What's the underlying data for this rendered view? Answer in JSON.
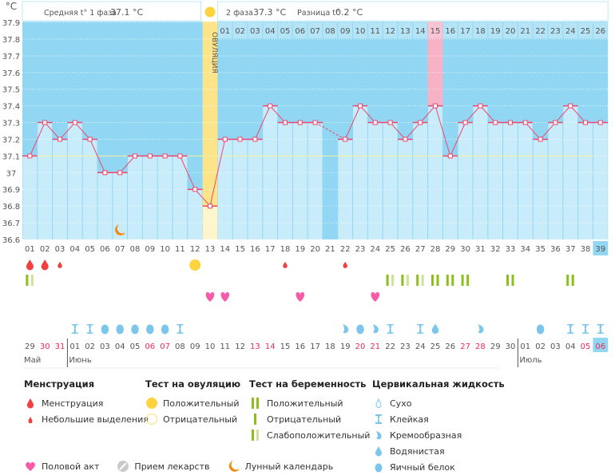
{
  "header": {
    "phase1_label": "Средняя t° 1 фаза",
    "phase1_value": "37.1 °C",
    "phase2_label": "2 фаза",
    "phase2_value": "37.3 °C",
    "diff_label": "Разница t°",
    "diff_value": "0.2 °C",
    "ovulation_label": "ОВУЛЯЦИЯ"
  },
  "chart_data": {
    "type": "line",
    "ylabel": "°C",
    "ylim": [
      36.6,
      37.9
    ],
    "yticks": [
      "37.9",
      "37.8",
      "37.7",
      "37.6",
      "37.5",
      "37.4",
      "37.3",
      "37.2",
      "37.1",
      "37",
      "36.9",
      "36.8",
      "36.7",
      "36.6"
    ],
    "coverline": 37.1,
    "ovulation_day": 13,
    "highlight_day": 28,
    "today_day": 39,
    "cycle_days": [
      "01",
      "02",
      "03",
      "04",
      "05",
      "06",
      "07",
      "08",
      "09",
      "10",
      "11",
      "12",
      "13",
      "14",
      "15",
      "16",
      "17",
      "18",
      "19",
      "20",
      "21",
      "22",
      "23",
      "24",
      "25",
      "26",
      "27",
      "28",
      "29",
      "30",
      "31",
      "32",
      "33",
      "34",
      "35",
      "36",
      "37",
      "38",
      "39"
    ],
    "phase2_days": [
      "01",
      "02",
      "03",
      "04",
      "05",
      "06",
      "07",
      "08",
      "09",
      "10",
      "11",
      "12",
      "13",
      "14",
      "15",
      "16",
      "17",
      "18",
      "19",
      "20",
      "21",
      "22",
      "23",
      "24",
      "25",
      "26"
    ],
    "temperatures": [
      37.1,
      37.3,
      37.2,
      37.3,
      37.2,
      37.0,
      37.0,
      37.1,
      37.1,
      37.1,
      37.1,
      36.9,
      36.8,
      37.2,
      37.2,
      37.2,
      37.4,
      37.3,
      37.3,
      37.3,
      null,
      37.2,
      37.4,
      37.3,
      37.3,
      37.2,
      37.3,
      37.4,
      37.1,
      37.3,
      37.4,
      37.3,
      37.3,
      37.3,
      37.2,
      37.3,
      37.4,
      37.3,
      37.3
    ],
    "dates": [
      "29",
      "30",
      "31",
      "01",
      "02",
      "03",
      "04",
      "05",
      "06",
      "07",
      "08",
      "09",
      "10",
      "11",
      "12",
      "13",
      "14",
      "15",
      "16",
      "17",
      "18",
      "19",
      "20",
      "21",
      "22",
      "23",
      "24",
      "25",
      "26",
      "27",
      "28",
      "29",
      "30",
      "01",
      "02",
      "03",
      "04",
      "05",
      "06"
    ],
    "weekend_dates_idx": [
      1,
      2,
      8,
      9,
      15,
      16,
      22,
      23,
      29,
      30,
      37,
      38
    ],
    "months": [
      {
        "label": "Май",
        "start_day": 1
      },
      {
        "label": "Июнь",
        "start_day": 4
      },
      {
        "label": "Июль",
        "start_day": 34
      }
    ],
    "moon_day": 7,
    "menstruation": [
      {
        "day": 1,
        "type": "heavy"
      },
      {
        "day": 2,
        "type": "heavy"
      },
      {
        "day": 3,
        "type": "light"
      },
      {
        "day": 18,
        "type": "light"
      },
      {
        "day": 22,
        "type": "light"
      }
    ],
    "ovulation_tests": [
      {
        "day": 12,
        "type": "positive"
      }
    ],
    "pregnancy_tests": [
      {
        "day": 1,
        "type": "weak"
      },
      {
        "day": 25,
        "type": "weak"
      },
      {
        "day": 26,
        "type": "weak"
      },
      {
        "day": 27,
        "type": "weak"
      },
      {
        "day": 28,
        "type": "positive"
      },
      {
        "day": 29,
        "type": "positive"
      },
      {
        "day": 30,
        "type": "positive"
      },
      {
        "day": 33,
        "type": "positive"
      },
      {
        "day": 37,
        "type": "positive"
      }
    ],
    "intercourse_days": [
      13,
      14,
      19,
      24
    ],
    "cervical": [
      {
        "day": 4,
        "type": "sticky"
      },
      {
        "day": 5,
        "type": "sticky"
      },
      {
        "day": 6,
        "type": "eggwhite"
      },
      {
        "day": 7,
        "type": "eggwhite"
      },
      {
        "day": 8,
        "type": "eggwhite"
      },
      {
        "day": 9,
        "type": "eggwhite"
      },
      {
        "day": 10,
        "type": "eggwhite"
      },
      {
        "day": 11,
        "type": "sticky"
      },
      {
        "day": 22,
        "type": "creamy"
      },
      {
        "day": 23,
        "type": "eggwhite"
      },
      {
        "day": 24,
        "type": "creamy"
      },
      {
        "day": 25,
        "type": "sticky"
      },
      {
        "day": 27,
        "type": "sticky"
      },
      {
        "day": 28,
        "type": "watery"
      },
      {
        "day": 31,
        "type": "creamy"
      },
      {
        "day": 35,
        "type": "eggwhite"
      },
      {
        "day": 37,
        "type": "sticky"
      },
      {
        "day": 38,
        "type": "sticky"
      },
      {
        "day": 39,
        "type": "sticky"
      }
    ]
  },
  "colors": {
    "bg_dark": "#91d7f3",
    "bar": "#c8ecfa",
    "line": "#f0466e",
    "ovulation": "#fbe48a",
    "highlight": "#f7b2c6",
    "weekend": "#ee2a5a",
    "menstruation": "#f0403f",
    "test": "#8cbf1a",
    "test_weak": "#cde39b",
    "heart": "#f75aa8",
    "cervical": "#7cc6ee",
    "sun": "#fdd440",
    "moon": "#f08a12"
  },
  "legend": {
    "menstruation": {
      "title": "Менструация",
      "items": [
        "Менструация",
        "Небольшие выделения"
      ]
    },
    "ovulation_test": {
      "title": "Тест на овуляцию",
      "items": [
        "Положительный",
        "Отрицательный"
      ]
    },
    "pregnancy_test": {
      "title": "Тест на беременность",
      "items": [
        "Положительный",
        "Отрицательный",
        "Слабоположительный"
      ]
    },
    "cervical": {
      "title": "Цервикальная жидкость",
      "items": [
        "Сухо",
        "Клейкая",
        "Кремообразная",
        "Водянистая",
        "Яичный белок"
      ]
    },
    "other": [
      "Половой акт",
      "Прием лекарств",
      "Лунный календарь"
    ]
  }
}
